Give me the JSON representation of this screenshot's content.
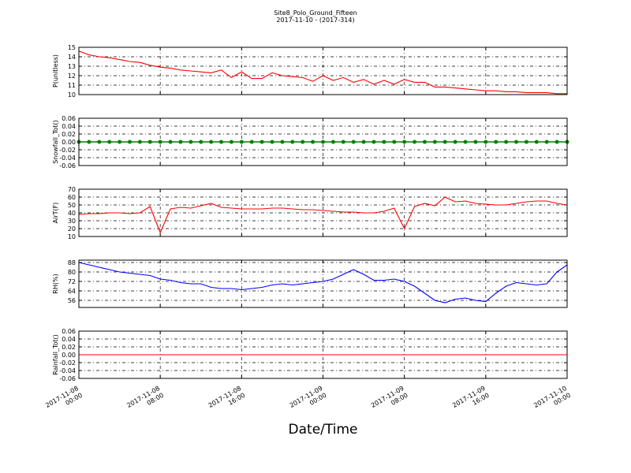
{
  "chart_data": [
    {
      "type": "line",
      "title": "Site8_Polo_Ground_Fifteen",
      "subtitle": "2017-11-10 - (2017-314)",
      "y_label": "P(unitless)",
      "color": "#ff0000",
      "markers": false,
      "grid": true,
      "x": [
        "2017-11-08 00:00",
        "2017-11-08 01:00",
        "2017-11-08 02:00",
        "2017-11-08 03:00",
        "2017-11-08 04:00",
        "2017-11-08 05:00",
        "2017-11-08 06:00",
        "2017-11-08 07:00",
        "2017-11-08 08:00",
        "2017-11-08 09:00",
        "2017-11-08 10:00",
        "2017-11-08 11:00",
        "2017-11-08 12:00",
        "2017-11-08 13:00",
        "2017-11-08 14:00",
        "2017-11-08 15:00",
        "2017-11-08 16:00",
        "2017-11-08 17:00",
        "2017-11-08 18:00",
        "2017-11-08 19:00",
        "2017-11-08 20:00",
        "2017-11-08 21:00",
        "2017-11-08 22:00",
        "2017-11-08 23:00",
        "2017-11-09 00:00",
        "2017-11-09 01:00",
        "2017-11-09 02:00",
        "2017-11-09 03:00",
        "2017-11-09 04:00",
        "2017-11-09 05:00",
        "2017-11-09 06:00",
        "2017-11-09 07:00",
        "2017-11-09 08:00",
        "2017-11-09 09:00",
        "2017-11-09 10:00",
        "2017-11-09 11:00",
        "2017-11-09 12:00",
        "2017-11-09 13:00",
        "2017-11-09 14:00",
        "2017-11-09 15:00",
        "2017-11-09 16:00",
        "2017-11-09 17:00",
        "2017-11-09 18:00",
        "2017-11-09 19:00",
        "2017-11-09 20:00",
        "2017-11-09 21:00",
        "2017-11-09 22:00",
        "2017-11-09 23:00",
        "2017-11-10 00:00"
      ],
      "values": [
        14.6,
        14.2,
        14.0,
        13.9,
        13.7,
        13.5,
        13.4,
        13.1,
        12.9,
        12.8,
        12.6,
        12.5,
        12.4,
        12.3,
        12.6,
        11.8,
        12.4,
        11.7,
        11.7,
        12.3,
        12.0,
        11.9,
        11.8,
        11.4,
        12.0,
        11.5,
        11.8,
        11.3,
        11.6,
        11.1,
        11.5,
        11.1,
        11.6,
        11.3,
        11.3,
        10.8,
        10.8,
        10.7,
        10.6,
        10.5,
        10.4,
        10.4,
        10.3,
        10.3,
        10.2,
        10.2,
        10.2,
        10.1,
        10.1
      ],
      "xlim": [
        "2017-11-08 00:00",
        "2017-11-10 00:00"
      ],
      "xticks": [
        "2017-11-08 00:00",
        "2017-11-08 08:00",
        "2017-11-08 16:00",
        "2017-11-09 00:00",
        "2017-11-09 08:00",
        "2017-11-09 16:00",
        "2017-11-10 00:00"
      ],
      "ylim": [
        10,
        15
      ],
      "yticks": [
        10,
        11,
        12,
        13,
        14,
        15
      ]
    },
    {
      "type": "line",
      "y_label": "Snowfall_Tot()",
      "color": "#008000",
      "markers": true,
      "grid": true,
      "x": [
        "2017-11-08 00:00",
        "2017-11-08 01:00",
        "2017-11-08 02:00",
        "2017-11-08 03:00",
        "2017-11-08 04:00",
        "2017-11-08 05:00",
        "2017-11-08 06:00",
        "2017-11-08 07:00",
        "2017-11-08 08:00",
        "2017-11-08 09:00",
        "2017-11-08 10:00",
        "2017-11-08 11:00",
        "2017-11-08 12:00",
        "2017-11-08 13:00",
        "2017-11-08 14:00",
        "2017-11-08 15:00",
        "2017-11-08 16:00",
        "2017-11-08 17:00",
        "2017-11-08 18:00",
        "2017-11-08 19:00",
        "2017-11-08 20:00",
        "2017-11-08 21:00",
        "2017-11-08 22:00",
        "2017-11-08 23:00",
        "2017-11-09 00:00",
        "2017-11-09 01:00",
        "2017-11-09 02:00",
        "2017-11-09 03:00",
        "2017-11-09 04:00",
        "2017-11-09 05:00",
        "2017-11-09 06:00",
        "2017-11-09 07:00",
        "2017-11-09 08:00",
        "2017-11-09 09:00",
        "2017-11-09 10:00",
        "2017-11-09 11:00",
        "2017-11-09 12:00",
        "2017-11-09 13:00",
        "2017-11-09 14:00",
        "2017-11-09 15:00",
        "2017-11-09 16:00",
        "2017-11-09 17:00",
        "2017-11-09 18:00",
        "2017-11-09 19:00",
        "2017-11-09 20:00",
        "2017-11-09 21:00",
        "2017-11-09 22:00",
        "2017-11-09 23:00",
        "2017-11-10 00:00"
      ],
      "values": [
        0,
        0,
        0,
        0,
        0,
        0,
        0,
        0,
        0,
        0,
        0,
        0,
        0,
        0,
        0,
        0,
        0,
        0,
        0,
        0,
        0,
        0,
        0,
        0,
        0,
        0,
        0,
        0,
        0,
        0,
        0,
        0,
        0,
        0,
        0,
        0,
        0,
        0,
        0,
        0,
        0,
        0,
        0,
        0,
        0,
        0,
        0,
        0,
        0
      ],
      "xlim": [
        "2017-11-08 00:00",
        "2017-11-10 00:00"
      ],
      "xticks": [
        "2017-11-08 00:00",
        "2017-11-08 08:00",
        "2017-11-08 16:00",
        "2017-11-09 00:00",
        "2017-11-09 08:00",
        "2017-11-09 16:00",
        "2017-11-10 00:00"
      ],
      "ylim": [
        -0.06,
        0.06
      ],
      "yticks": [
        -0.06,
        -0.04,
        -0.02,
        {
          "value": 0,
          "label": "0.00"
        },
        0.02,
        0.04,
        0.06
      ]
    },
    {
      "type": "line",
      "y_label": "AirT(F)",
      "color": "#ff0000",
      "markers": false,
      "grid": true,
      "x": [
        "2017-11-08 00:00",
        "2017-11-08 01:00",
        "2017-11-08 02:00",
        "2017-11-08 03:00",
        "2017-11-08 04:00",
        "2017-11-08 05:00",
        "2017-11-08 06:00",
        "2017-11-08 07:00",
        "2017-11-08 08:00",
        "2017-11-08 09:00",
        "2017-11-08 10:00",
        "2017-11-08 11:00",
        "2017-11-08 12:00",
        "2017-11-08 13:00",
        "2017-11-08 14:00",
        "2017-11-08 15:00",
        "2017-11-08 16:00",
        "2017-11-08 17:00",
        "2017-11-08 18:00",
        "2017-11-08 19:00",
        "2017-11-08 20:00",
        "2017-11-08 21:00",
        "2017-11-08 22:00",
        "2017-11-08 23:00",
        "2017-11-09 00:00",
        "2017-11-09 01:00",
        "2017-11-09 02:00",
        "2017-11-09 03:00",
        "2017-11-09 04:00",
        "2017-11-09 05:00",
        "2017-11-09 06:00",
        "2017-11-09 07:00",
        "2017-11-09 08:00",
        "2017-11-09 09:00",
        "2017-11-09 10:00",
        "2017-11-09 11:00",
        "2017-11-09 12:00",
        "2017-11-09 13:00",
        "2017-11-09 14:00",
        "2017-11-09 15:00",
        "2017-11-09 16:00",
        "2017-11-09 17:00",
        "2017-11-09 18:00",
        "2017-11-09 19:00",
        "2017-11-09 20:00",
        "2017-11-09 21:00",
        "2017-11-09 22:00",
        "2017-11-09 23:00",
        "2017-11-10 00:00"
      ],
      "values": [
        38,
        39,
        39,
        40,
        40,
        39,
        40,
        48,
        15,
        45,
        47,
        46,
        49,
        52,
        47,
        46,
        45,
        45,
        45,
        46,
        46,
        45,
        44,
        44,
        43,
        42,
        41,
        41,
        40,
        40,
        42,
        46,
        20,
        48,
        52,
        49,
        60,
        54,
        55,
        52,
        51,
        50,
        50,
        52,
        54,
        55,
        55,
        52,
        50
      ],
      "xlim": [
        "2017-11-08 00:00",
        "2017-11-10 00:00"
      ],
      "xticks": [
        "2017-11-08 00:00",
        "2017-11-08 08:00",
        "2017-11-08 16:00",
        "2017-11-09 00:00",
        "2017-11-09 08:00",
        "2017-11-09 16:00",
        "2017-11-10 00:00"
      ],
      "ylim": [
        10,
        70
      ],
      "yticks": [
        10,
        20,
        30,
        40,
        50,
        60,
        70
      ]
    },
    {
      "type": "line",
      "y_label": "RH(%)",
      "color": "#0000ff",
      "markers": false,
      "grid": true,
      "x": [
        "2017-11-08 00:00",
        "2017-11-08 01:00",
        "2017-11-08 02:00",
        "2017-11-08 03:00",
        "2017-11-08 04:00",
        "2017-11-08 05:00",
        "2017-11-08 06:00",
        "2017-11-08 07:00",
        "2017-11-08 08:00",
        "2017-11-08 09:00",
        "2017-11-08 10:00",
        "2017-11-08 11:00",
        "2017-11-08 12:00",
        "2017-11-08 13:00",
        "2017-11-08 14:00",
        "2017-11-08 15:00",
        "2017-11-08 16:00",
        "2017-11-08 17:00",
        "2017-11-08 18:00",
        "2017-11-08 19:00",
        "2017-11-08 20:00",
        "2017-11-08 21:00",
        "2017-11-08 22:00",
        "2017-11-08 23:00",
        "2017-11-09 00:00",
        "2017-11-09 01:00",
        "2017-11-09 02:00",
        "2017-11-09 03:00",
        "2017-11-09 04:00",
        "2017-11-09 05:00",
        "2017-11-09 06:00",
        "2017-11-09 07:00",
        "2017-11-09 08:00",
        "2017-11-09 09:00",
        "2017-11-09 10:00",
        "2017-11-09 11:00",
        "2017-11-09 12:00",
        "2017-11-09 13:00",
        "2017-11-09 14:00",
        "2017-11-09 15:00",
        "2017-11-09 16:00",
        "2017-11-09 17:00",
        "2017-11-09 18:00",
        "2017-11-09 19:00",
        "2017-11-09 20:00",
        "2017-11-09 21:00",
        "2017-11-09 22:00",
        "2017-11-09 23:00",
        "2017-11-10 00:00"
      ],
      "values": [
        88,
        86,
        84,
        82,
        80,
        79,
        78,
        77,
        74,
        73,
        71,
        70,
        70,
        67,
        66,
        66,
        65,
        66,
        67,
        69,
        70,
        69,
        70,
        71,
        72,
        74,
        78,
        82,
        78,
        73,
        73,
        74,
        72,
        68,
        62,
        56,
        54,
        57,
        58,
        56,
        55,
        62,
        68,
        71,
        70,
        69,
        70,
        80,
        86
      ],
      "xlim": [
        "2017-11-08 00:00",
        "2017-11-10 00:00"
      ],
      "xticks": [
        "2017-11-08 00:00",
        "2017-11-08 08:00",
        "2017-11-08 16:00",
        "2017-11-09 00:00",
        "2017-11-09 08:00",
        "2017-11-09 16:00",
        "2017-11-10 00:00"
      ],
      "ylim": [
        50,
        90
      ],
      "yticks": [
        56,
        64,
        72,
        80,
        88
      ]
    },
    {
      "type": "line",
      "y_label": "Rainfall_Tot()",
      "x_label": "Date/Time",
      "color": "#ff0000",
      "markers": false,
      "grid": true,
      "show_xtick_labels": true,
      "x": [
        "2017-11-08 00:00",
        "2017-11-08 01:00",
        "2017-11-08 02:00",
        "2017-11-08 03:00",
        "2017-11-08 04:00",
        "2017-11-08 05:00",
        "2017-11-08 06:00",
        "2017-11-08 07:00",
        "2017-11-08 08:00",
        "2017-11-08 09:00",
        "2017-11-08 10:00",
        "2017-11-08 11:00",
        "2017-11-08 12:00",
        "2017-11-08 13:00",
        "2017-11-08 14:00",
        "2017-11-08 15:00",
        "2017-11-08 16:00",
        "2017-11-08 17:00",
        "2017-11-08 18:00",
        "2017-11-08 19:00",
        "2017-11-08 20:00",
        "2017-11-08 21:00",
        "2017-11-08 22:00",
        "2017-11-08 23:00",
        "2017-11-09 00:00",
        "2017-11-09 01:00",
        "2017-11-09 02:00",
        "2017-11-09 03:00",
        "2017-11-09 04:00",
        "2017-11-09 05:00",
        "2017-11-09 06:00",
        "2017-11-09 07:00",
        "2017-11-09 08:00",
        "2017-11-09 09:00",
        "2017-11-09 10:00",
        "2017-11-09 11:00",
        "2017-11-09 12:00",
        "2017-11-09 13:00",
        "2017-11-09 14:00",
        "2017-11-09 15:00",
        "2017-11-09 16:00",
        "2017-11-09 17:00",
        "2017-11-09 18:00",
        "2017-11-09 19:00",
        "2017-11-09 20:00",
        "2017-11-09 21:00",
        "2017-11-09 22:00",
        "2017-11-09 23:00",
        "2017-11-10 00:00"
      ],
      "values": [
        0,
        0,
        0,
        0,
        0,
        0,
        0,
        0,
        0,
        0,
        0,
        0,
        0,
        0,
        0,
        0,
        0,
        0,
        0,
        0,
        0,
        0,
        0,
        0,
        0,
        0,
        0,
        0,
        0,
        0,
        0,
        0,
        0,
        0,
        0,
        0,
        0,
        0,
        0,
        0,
        0,
        0,
        0,
        0,
        0,
        0,
        0,
        0,
        0
      ],
      "xlim": [
        "2017-11-08 00:00",
        "2017-11-10 00:00"
      ],
      "xticks": [
        "2017-11-08 00:00",
        "2017-11-08 08:00",
        "2017-11-08 16:00",
        "2017-11-09 00:00",
        "2017-11-09 08:00",
        "2017-11-09 16:00",
        "2017-11-10 00:00"
      ],
      "ylim": [
        -0.06,
        0.06
      ],
      "yticks": [
        -0.06,
        -0.04,
        -0.02,
        {
          "value": 0,
          "label": "0.00"
        },
        0.02,
        0.04,
        0.06
      ]
    }
  ]
}
